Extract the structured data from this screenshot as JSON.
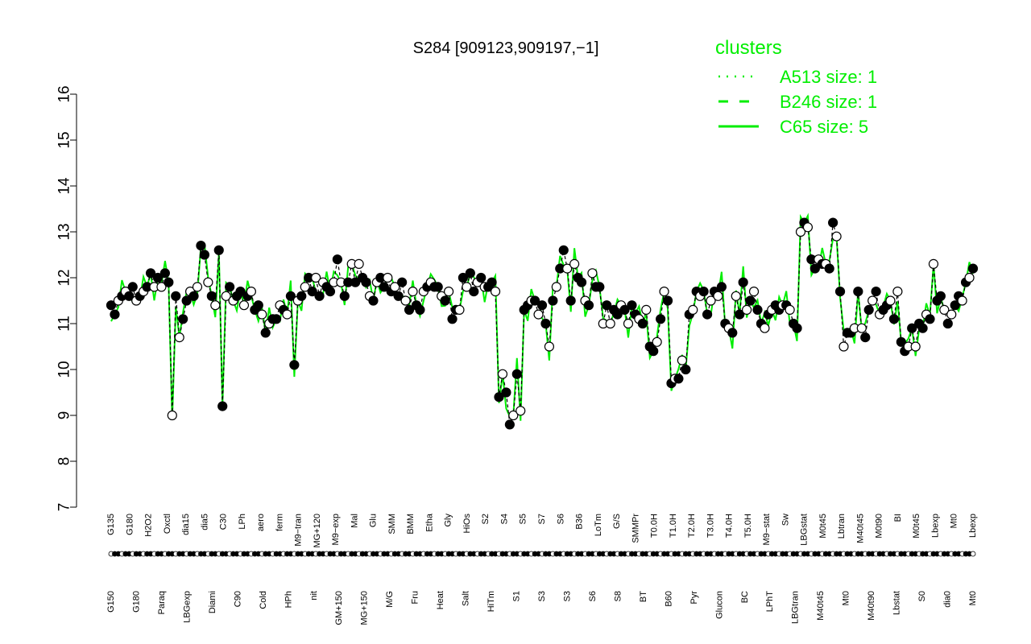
{
  "chart_data": {
    "type": "line",
    "title": "S284 [909123,909197,−1]",
    "xlabel": "",
    "ylabel": "",
    "ylim": [
      7,
      16
    ],
    "yticks": [
      7,
      8,
      9,
      10,
      11,
      12,
      13,
      14,
      15,
      16
    ],
    "line_color": "#00ee00",
    "legend": {
      "title": "clusters",
      "placement": "top-right",
      "entries": [
        {
          "label": "A513 size: 1",
          "style": "dotted"
        },
        {
          "label": "B246 size: 1",
          "style": "dashed"
        },
        {
          "label": "C65 size: 5",
          "style": "solid"
        }
      ]
    },
    "categories_upper": [
      "G135",
      "G180",
      "H2O2",
      "Oxctl",
      "dia15",
      "dia5",
      "C30",
      "LPh",
      "aero",
      "ferm",
      "M9−tran",
      "MG+120",
      "M9−exp",
      "Mal",
      "Glu",
      "SMM",
      "BMM",
      "Etha",
      "Gly",
      "HiOs",
      "S2",
      "S4",
      "S5",
      "S7",
      "S6",
      "B36",
      "LoTm",
      "G/S",
      "SMMPr",
      "T0.0H",
      "T1.0H",
      "T2.0H",
      "T3.0H",
      "T4.0H",
      "T5.0H",
      "M9−stat",
      "Sw",
      "LBGstat",
      "M0t45",
      "Lbtran",
      "M40t45",
      "M0t90",
      "BI",
      "M0t45",
      "Lbexp",
      "Mt0",
      "Lbexp"
    ],
    "categories_lower": [
      "G150",
      "G180",
      "Paraq",
      "LBGexp",
      "Diami",
      "C90",
      "Cold",
      "HPh",
      "nit",
      "GM+150",
      "MG+150",
      "M/G",
      "Fru",
      "Heat",
      "Salt",
      "HiTm",
      "S1",
      "S3",
      "S3",
      "S6",
      "S8",
      "BT",
      "B60",
      "Pyr",
      "Glucon",
      "BC",
      "LPhT",
      "LBGtran",
      "M40t45",
      "Mt0",
      "M40t90",
      "Lbstat",
      "S0",
      "dia0",
      "Mt0"
    ],
    "series": [
      {
        "values": [
          11.4,
          11.2,
          11.5,
          11.6,
          11.7,
          11.6,
          11.8,
          11.5,
          11.6,
          11.7,
          11.8,
          12.1,
          11.8,
          12.0,
          11.8,
          12.1,
          11.9,
          9.0,
          11.6,
          10.7,
          11.1,
          11.5,
          11.7,
          11.6,
          11.8,
          12.7,
          12.5,
          11.9,
          11.6,
          11.4,
          12.6,
          9.2,
          11.6,
          11.8,
          11.5,
          11.6,
          11.7,
          11.4,
          11.6,
          11.7,
          11.3,
          11.4,
          11.2,
          10.8,
          11.0,
          11.1,
          11.1,
          11.4,
          11.3,
          11.2,
          11.6,
          10.1,
          11.5,
          11.6,
          11.8,
          12.0,
          11.7,
          12.0,
          11.6,
          11.9,
          11.8,
          11.7,
          11.9,
          12.4,
          11.9,
          11.6,
          11.9,
          12.3,
          11.9,
          12.3,
          12.0,
          11.9,
          11.6,
          11.5,
          11.9,
          12.0,
          11.8,
          12.0,
          11.7,
          11.8,
          11.6,
          11.9,
          11.5,
          11.3,
          11.7,
          11.4,
          11.3,
          11.7,
          11.8,
          11.9,
          11.8,
          11.8,
          11.6,
          11.5,
          11.7,
          11.1,
          11.3,
          11.3,
          12.0,
          11.8,
          12.1,
          11.7,
          11.9,
          12.0,
          11.8,
          11.8,
          11.9,
          11.7,
          9.4,
          9.9,
          9.5,
          8.8,
          9.0,
          9.9,
          9.1,
          11.3,
          11.4,
          11.5,
          11.5,
          11.2,
          11.4,
          11.0,
          10.5,
          11.5,
          11.8,
          12.2,
          12.6,
          12.2,
          11.5,
          12.3,
          12.0,
          11.9,
          11.5,
          11.4,
          12.1,
          11.8,
          11.8,
          11.0,
          11.4,
          11.0,
          11.3,
          11.2,
          11.4,
          11.3,
          11.0,
          11.4,
          11.2,
          11.1,
          11.0,
          11.3,
          10.5,
          10.4,
          10.6,
          11.1,
          11.7,
          11.5,
          9.7,
          9.8,
          9.8,
          10.2,
          10.0,
          11.2,
          11.3,
          11.7,
          11.6,
          11.7,
          11.2,
          11.5,
          11.7,
          11.6,
          11.8,
          11.0,
          10.9,
          10.8,
          11.6,
          11.2,
          11.9,
          11.3,
          11.5,
          11.7,
          11.3,
          11.0,
          10.9,
          11.2,
          11.3,
          11.4,
          11.3,
          11.4,
          11.4,
          11.3,
          11.0,
          10.9,
          13.0,
          13.2,
          13.1,
          12.4,
          12.2,
          12.4,
          12.3,
          12.3,
          12.2,
          13.2,
          12.9,
          11.7,
          10.5,
          10.8,
          10.8,
          10.9,
          11.7,
          10.9,
          10.7,
          11.3,
          11.5,
          11.7,
          11.2,
          11.3,
          11.4,
          11.5,
          11.1,
          11.7,
          10.6,
          10.4,
          10.5,
          10.9,
          10.5,
          11.0,
          10.9,
          11.2,
          11.1,
          12.3,
          11.5,
          11.6,
          11.3,
          11.0,
          11.2,
          11.4,
          11.6,
          11.5,
          11.9,
          12.0,
          12.2
        ]
      }
    ]
  }
}
